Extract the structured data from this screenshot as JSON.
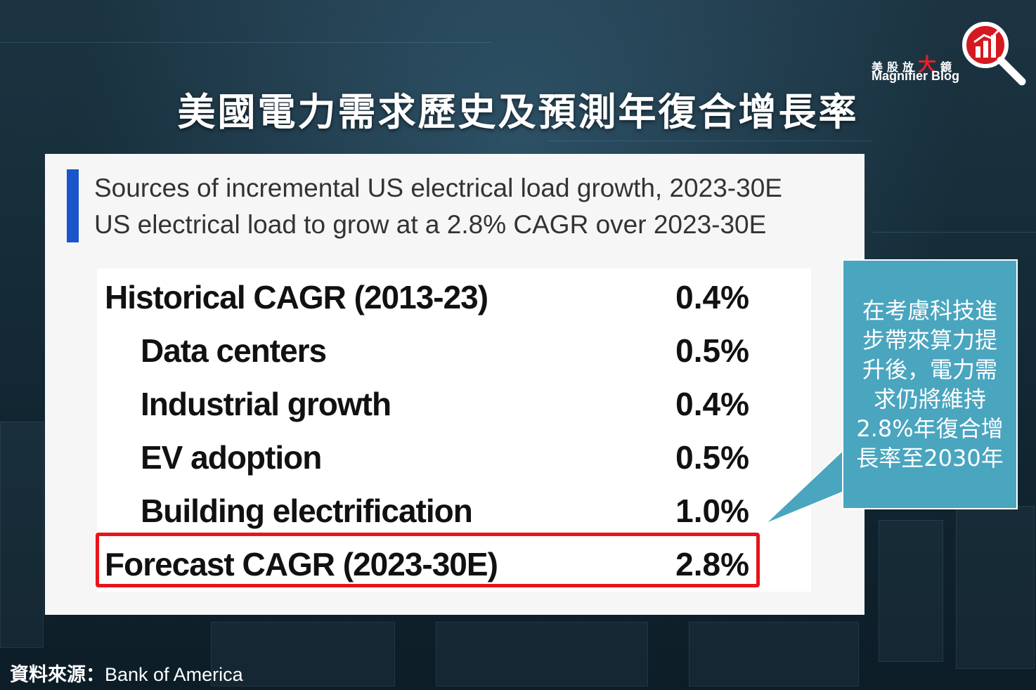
{
  "header": {
    "title": "美國電力需求歷史及預測年復合增長率"
  },
  "logo": {
    "chinese_prefix": "美股放",
    "chinese_big": "大",
    "chinese_suffix": "鏡",
    "english": "Magnifier Blog",
    "icon": "magnifier-bar-chart-icon",
    "accent_color": "#e8202a"
  },
  "panel": {
    "title": "Sources of incremental US electrical load growth, 2023-30E",
    "subtitle": "US electrical load to grow at a 2.8% CAGR over 2023-30E",
    "accent_color": "#1a55c9",
    "rows": [
      {
        "label": "Historical CAGR (2013-23)",
        "value": "0.4%"
      },
      {
        "label": "Data centers",
        "value": "0.5%"
      },
      {
        "label": "Industrial growth",
        "value": "0.4%"
      },
      {
        "label": "EV adoption",
        "value": "0.5%"
      },
      {
        "label": "Building electrification",
        "value": "1.0%"
      },
      {
        "label": "Forecast CAGR (2023-30E)",
        "value": "2.8%"
      }
    ],
    "highlight_color": "#e8141b"
  },
  "callout": {
    "lines": [
      "在考慮科技進",
      "步帶來算力提",
      "升後，電力需",
      "求仍將維持",
      "2.8%年復合增",
      "長率至2030年"
    ],
    "color": "#4aa5bf"
  },
  "source": {
    "prefix": "資料來源：",
    "org": "Bank of America"
  }
}
